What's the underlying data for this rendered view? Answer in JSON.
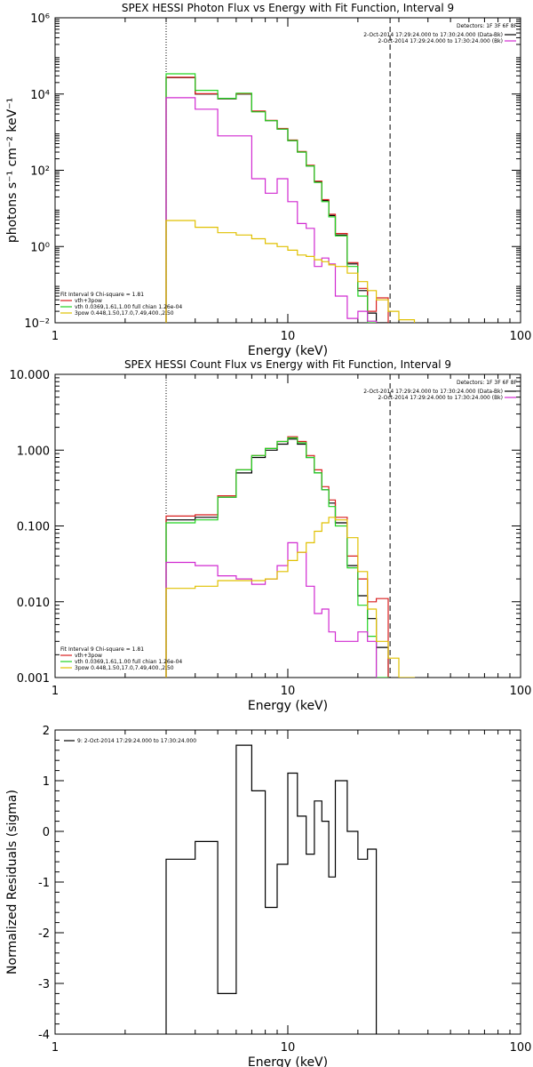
{
  "colors": {
    "black": "#000000",
    "red": "#d81e1e",
    "green": "#22d322",
    "magenta": "#d12ad1",
    "yellow": "#e0c000"
  },
  "chart_data": [
    {
      "type": "line",
      "title": "SPEX HESSI Photon Flux vs Energy with Fit Function, Interval 9",
      "xlabel": "Energy (keV)",
      "ylabel": "photons s⁻¹ cm⁻² keV⁻¹",
      "xscale": "log",
      "yscale": "log",
      "xlim": [
        1,
        100
      ],
      "ylim": [
        0.01,
        1000000
      ],
      "x_ticks": [
        {
          "v": 1,
          "label": "1"
        },
        {
          "v": 10,
          "label": "10"
        },
        {
          "v": 100,
          "label": "100"
        }
      ],
      "y_ticks": [
        {
          "v": 0.01,
          "label": "10⁻²"
        },
        {
          "v": 1,
          "label": "10⁰"
        },
        {
          "v": 100,
          "label": "10²"
        },
        {
          "v": 10000,
          "label": "10⁴"
        },
        {
          "v": 1000000,
          "label": "10⁶"
        }
      ],
      "vlines": [
        {
          "x": 3,
          "style": "dotted"
        },
        {
          "x": 27.5,
          "style": "dashed"
        }
      ],
      "edges": [
        3,
        4,
        5,
        6,
        7,
        8,
        9,
        10,
        11,
        12,
        13,
        14,
        15,
        16,
        18,
        20,
        22,
        24,
        27,
        30,
        35
      ],
      "series": [
        {
          "name": "",
          "color": "black",
          "values": [
            27000,
            10000,
            7500,
            10000,
            3500,
            2000,
            1200,
            600,
            300,
            130,
            50,
            16,
            6.5,
            2,
            0.35,
            0.07,
            0.018,
            0.004
          ]
        },
        {
          "name": "",
          "color": "red",
          "values": [
            27500,
            10200,
            7700,
            10200,
            3600,
            2050,
            1250,
            620,
            310,
            135,
            52,
            17,
            7,
            2.2,
            0.38,
            0.08,
            0.02,
            0.045
          ]
        },
        {
          "name": "",
          "color": "green",
          "values": [
            34000,
            12500,
            7700,
            10500,
            3400,
            2000,
            1200,
            600,
            300,
            130,
            48,
            15,
            6,
            1.9,
            0.3,
            0.05,
            0.008
          ]
        },
        {
          "name": "",
          "color": "magenta",
          "values": [
            8000,
            4000,
            800,
            800,
            60,
            25,
            60,
            15,
            4,
            3,
            0.3,
            0.5,
            0.35,
            0.05,
            0.013,
            0.02,
            0.011
          ]
        },
        {
          "name": "",
          "color": "yellow",
          "values": [
            4.8,
            3.2,
            2.3,
            2.0,
            1.6,
            1.2,
            1.0,
            0.8,
            0.6,
            0.55,
            0.45,
            0.4,
            0.33,
            0.3,
            0.2,
            0.12,
            0.07,
            0.04,
            0.02,
            0.012
          ]
        }
      ],
      "detectors_text": "Detectors: 1F 3F 6F 8F",
      "legend_right": [
        {
          "label": "2-Oct-2014 17:29:24.000 to 17:30:24.000 (Data-Bk)",
          "color": "black"
        },
        {
          "label": "2-Oct-2014 17:29:24.000 to 17:30:24.000 (Bk)",
          "color": "magenta"
        }
      ],
      "legend_left_header": "Fit Interval 9   Chi-square = 1.81",
      "legend_left": [
        {
          "label": "vth+3pow",
          "color": "red"
        },
        {
          "label": "vth 0.0369,1.61,1.00  full chian 1.26e-04",
          "color": "green"
        },
        {
          "label": "3pow 0.448,1.50,17.0,7.49,400.,2.50",
          "color": "yellow"
        }
      ]
    },
    {
      "type": "line",
      "title": "SPEX HESSI Count Flux vs Energy with Fit Function, Interval 9",
      "xlabel": "Energy (keV)",
      "ylabel": "",
      "xscale": "log",
      "yscale": "log",
      "xlim": [
        1,
        100
      ],
      "ylim": [
        0.001,
        10
      ],
      "x_ticks": [
        {
          "v": 1,
          "label": "1"
        },
        {
          "v": 10,
          "label": "10"
        },
        {
          "v": 100,
          "label": "100"
        }
      ],
      "y_ticks": [
        {
          "v": 0.001,
          "label": "0.001"
        },
        {
          "v": 0.01,
          "label": "0.010"
        },
        {
          "v": 0.1,
          "label": "0.100"
        },
        {
          "v": 1,
          "label": "1.000"
        },
        {
          "v": 10,
          "label": "10.000"
        }
      ],
      "vlines": [
        {
          "x": 3,
          "style": "dotted"
        },
        {
          "x": 27.5,
          "style": "dashed"
        }
      ],
      "edges": [
        3,
        4,
        5,
        6,
        7,
        8,
        9,
        10,
        11,
        12,
        13,
        14,
        15,
        16,
        18,
        20,
        22,
        24,
        27,
        30,
        35
      ],
      "series": [
        {
          "name": "",
          "color": "black",
          "values": [
            0.12,
            0.13,
            0.24,
            0.5,
            0.8,
            1.0,
            1.2,
            1.4,
            1.2,
            0.8,
            0.5,
            0.3,
            0.2,
            0.11,
            0.03,
            0.012,
            0.006,
            0.0025
          ]
        },
        {
          "name": "",
          "color": "red",
          "values": [
            0.135,
            0.14,
            0.25,
            0.55,
            0.85,
            1.05,
            1.3,
            1.5,
            1.3,
            0.85,
            0.55,
            0.33,
            0.22,
            0.13,
            0.04,
            0.02,
            0.01,
            0.011
          ]
        },
        {
          "name": "",
          "color": "green",
          "values": [
            0.11,
            0.12,
            0.24,
            0.55,
            0.85,
            1.05,
            1.3,
            1.45,
            1.25,
            0.8,
            0.5,
            0.3,
            0.18,
            0.1,
            0.028,
            0.009,
            0.0035,
            0.001
          ]
        },
        {
          "name": "",
          "color": "magenta",
          "values": [
            0.033,
            0.03,
            0.022,
            0.02,
            0.017,
            0.02,
            0.03,
            0.06,
            0.045,
            0.016,
            0.007,
            0.008,
            0.004,
            0.003,
            0.003,
            0.004,
            0.003
          ]
        },
        {
          "name": "",
          "color": "yellow",
          "values": [
            0.015,
            0.016,
            0.019,
            0.019,
            0.019,
            0.02,
            0.025,
            0.035,
            0.045,
            0.06,
            0.085,
            0.11,
            0.13,
            0.12,
            0.07,
            0.025,
            0.008,
            0.003,
            0.0018,
            0.001
          ]
        }
      ],
      "detectors_text": "Detectors: 1F 3F 6F 8F",
      "legend_right": [
        {
          "label": "2-Oct-2014 17:29:24.000 to 17:30:24.000 (Data-Bk)",
          "color": "black"
        },
        {
          "label": "2-Oct-2014 17:29:24.000 to 17:30:24.000 (Bk)",
          "color": "magenta"
        }
      ],
      "legend_left_header": "Fit Interval 9   Chi-square = 1.81",
      "legend_left": [
        {
          "label": "vth+3pow",
          "color": "red"
        },
        {
          "label": "vth 0.0369,1.61,1.00  full chian 1.26e-04",
          "color": "green"
        },
        {
          "label": "3pow 0.448,1.50,17.0,7.49,400.,2.50",
          "color": "yellow"
        }
      ]
    },
    {
      "type": "line",
      "title": "",
      "xlabel": "Energy (keV)",
      "ylabel": "Normalized Residuals (sigma)",
      "xscale": "log",
      "yscale": "linear",
      "xlim": [
        1,
        100
      ],
      "ylim": [
        -4,
        2
      ],
      "x_ticks": [
        {
          "v": 1,
          "label": "1"
        },
        {
          "v": 10,
          "label": "10"
        },
        {
          "v": 100,
          "label": "100"
        }
      ],
      "y_ticks": [
        {
          "v": -4,
          "label": "-4"
        },
        {
          "v": -3,
          "label": "-3"
        },
        {
          "v": -2,
          "label": "-2"
        },
        {
          "v": -1,
          "label": "-1"
        },
        {
          "v": 0,
          "label": "0"
        },
        {
          "v": 1,
          "label": "1"
        },
        {
          "v": 2,
          "label": "2"
        }
      ],
      "vlines": [],
      "edges": [
        3,
        4,
        5,
        6,
        7,
        8,
        9,
        10,
        11,
        12,
        13,
        14,
        15,
        16,
        18,
        20,
        22,
        24,
        27
      ],
      "series": [
        {
          "name": "",
          "color": "black",
          "values": [
            -0.55,
            -0.2,
            -3.2,
            1.7,
            0.8,
            -1.5,
            -0.65,
            1.15,
            0.3,
            -0.45,
            0.6,
            0.2,
            -0.9,
            1.0,
            0.0,
            -0.55,
            -0.35
          ]
        }
      ],
      "detectors_text": "",
      "legend_right": [],
      "legend_left_header": "",
      "legend_left": [],
      "legend_top": {
        "label": "9: 2-Oct-2014 17:29:24.000 to 17:30:24.000",
        "color": "black"
      }
    }
  ]
}
